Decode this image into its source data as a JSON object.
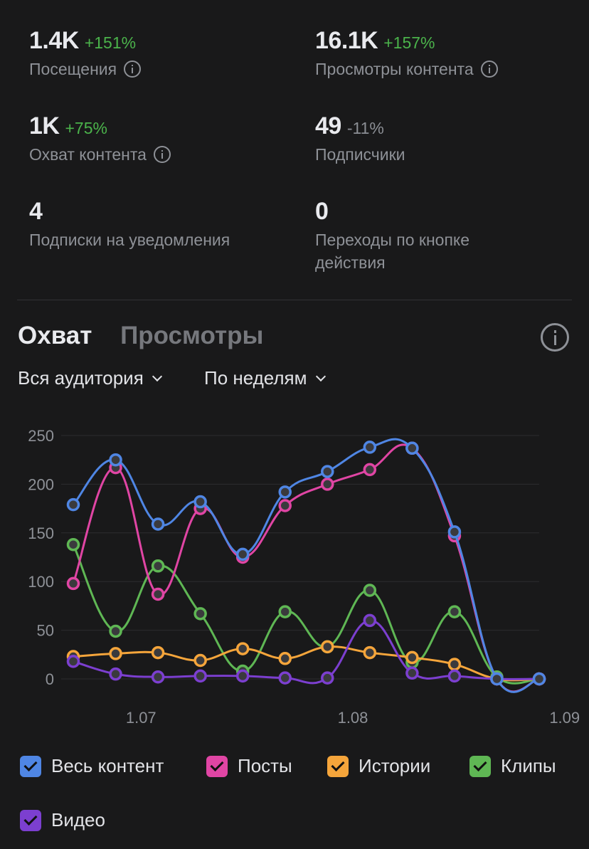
{
  "stats": [
    {
      "value": "1.4K",
      "change": "+151%",
      "direction": "up",
      "label": "Посещения",
      "info": true
    },
    {
      "value": "16.1K",
      "change": "+157%",
      "direction": "up",
      "label": "Просмотры контента",
      "info": true
    },
    {
      "value": "1K",
      "change": "+75%",
      "direction": "up",
      "label": "Охват контента",
      "info": true
    },
    {
      "value": "49",
      "change": "-11%",
      "direction": "down",
      "label": "Подписчики",
      "info": false
    },
    {
      "value": "4",
      "change": "",
      "direction": "",
      "label": "Подписки на уведомления",
      "info": false
    },
    {
      "value": "0",
      "change": "",
      "direction": "",
      "label": "Переходы по кнопке действия",
      "info": false
    }
  ],
  "tabs": {
    "active": "Охват",
    "inactive": "Просмотры"
  },
  "icons": {
    "stat_info": "info-icon",
    "chart_info": "info-icon",
    "dropdown": "chevron-down-icon",
    "legend_check": "checkmark-icon"
  },
  "filters": {
    "audience": "Вся аудитория",
    "period": "По неделям"
  },
  "chart_data": {
    "type": "line",
    "ylim": [
      0,
      250
    ],
    "yticks": [
      "250",
      "200",
      "150",
      "100",
      "50",
      "0"
    ],
    "xticks": [
      {
        "label": "1.07",
        "pos": 1.6
      },
      {
        "label": "1.08",
        "pos": 6.6
      },
      {
        "label": "1.09",
        "pos": 11.6
      }
    ],
    "x": [
      0,
      1,
      2,
      3,
      4,
      5,
      6,
      7,
      8,
      9,
      10,
      11
    ],
    "series": [
      {
        "name": "Клипы",
        "color": "#5fb754",
        "values": [
          138,
          49,
          116,
          67,
          8,
          69,
          33,
          91,
          17,
          69,
          2,
          0
        ]
      },
      {
        "name": "Истории",
        "color": "#f5a53b",
        "values": [
          23,
          26,
          27,
          19,
          31,
          21,
          33,
          27,
          22,
          15,
          0,
          0
        ]
      },
      {
        "name": "Видео",
        "color": "#7c3fd0",
        "values": [
          18,
          5,
          2,
          3,
          3,
          1,
          1,
          60,
          6,
          3,
          0,
          0
        ]
      },
      {
        "name": "Посты",
        "color": "#e045a4",
        "values": [
          98,
          217,
          87,
          175,
          125,
          178,
          200,
          215,
          237,
          147,
          0,
          0
        ]
      },
      {
        "name": "Весь контент",
        "color": "#4f86e4",
        "values": [
          179,
          225,
          159,
          182,
          128,
          192,
          213,
          238,
          237,
          151,
          0,
          0
        ]
      }
    ],
    "grid": true
  },
  "legend": [
    {
      "label": "Весь контент",
      "color": "#4f86e4"
    },
    {
      "label": "Посты",
      "color": "#e045a4"
    },
    {
      "label": "Истории",
      "color": "#f5a53b"
    },
    {
      "label": "Клипы",
      "color": "#5fb754"
    },
    {
      "label": "Видео",
      "color": "#7c3fd0"
    }
  ]
}
